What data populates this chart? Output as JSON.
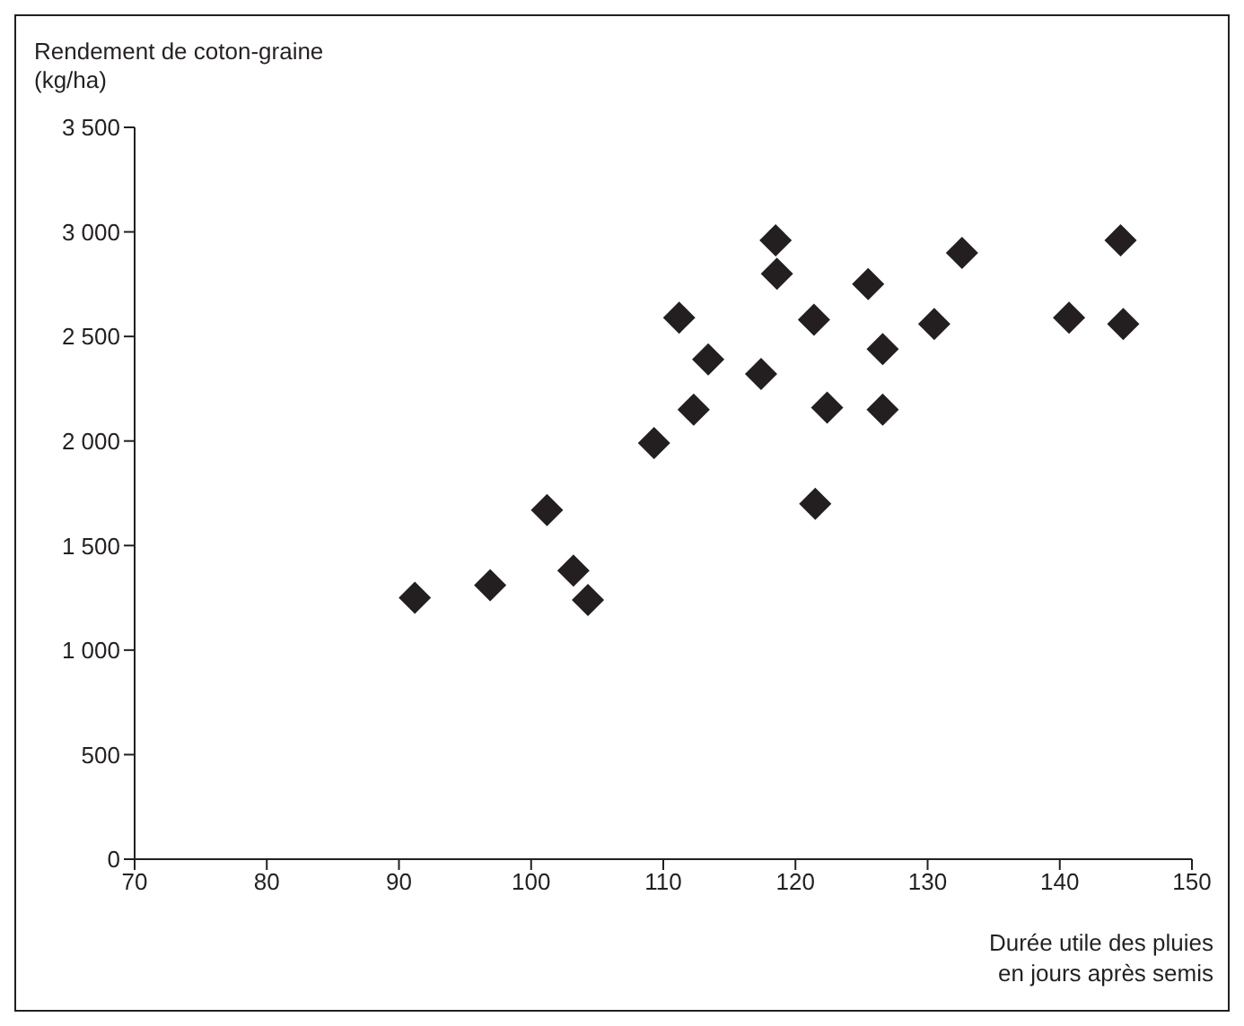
{
  "chart_data": {
    "type": "scatter",
    "ylabel": "Rendement de coton-graine\n(kg/ha)",
    "xlabel": "Durée utile des pluies\nen jours après semis",
    "x": [
      91.2,
      96.9,
      101.2,
      103.2,
      104.3,
      109.3,
      111.2,
      112.3,
      113.4,
      117.4,
      118.5,
      118.6,
      121.4,
      121.5,
      122.4,
      125.5,
      126.6,
      126.6,
      130.5,
      132.6,
      140.7,
      144.6,
      144.8
    ],
    "series": [
      {
        "color": "#231f20",
        "values": [
          1250,
          1310,
          1670,
          1380,
          1240,
          1990,
          2590,
          2150,
          2390,
          2320,
          2960,
          2800,
          2580,
          1700,
          2160,
          2750,
          2440,
          2150,
          2560,
          2900,
          2590,
          2960,
          2560
        ]
      }
    ],
    "xlim": [
      70,
      150
    ],
    "xticks": [
      70,
      80,
      90,
      100,
      110,
      120,
      130,
      140,
      150
    ],
    "ylim": [
      0,
      3500
    ],
    "yticks": [
      0,
      500,
      {
        "value": 1000,
        "label": "1 000"
      },
      {
        "value": 1500,
        "label": "1 500"
      },
      {
        "value": 2000,
        "label": "2 000"
      },
      {
        "value": 2500,
        "label": "2 500"
      },
      {
        "value": 3000,
        "label": "3 000"
      },
      {
        "value": 3500,
        "label": "3 500"
      }
    ],
    "grid": false,
    "legend": false,
    "marker": "diamond"
  }
}
